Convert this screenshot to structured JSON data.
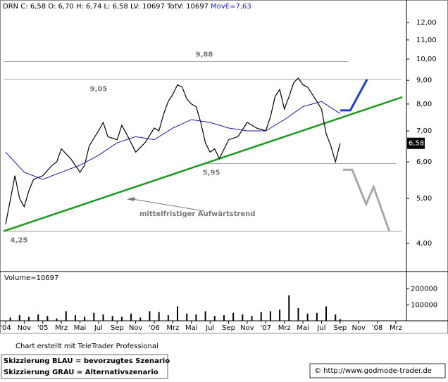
{
  "header": {
    "quote": "DRN C: 6,58 O: 6,70 H: 6,74 L: 6,58 LV: 10697 TotV: 10697",
    "ma": "MovE=7,63"
  },
  "chart_data": [
    {
      "type": "line",
      "log_y": true,
      "xlim": [
        -0.38,
        43.14
      ],
      "xticks": [
        {
          "value": 0,
          "label": "'04"
        },
        {
          "value": 2,
          "label": "Nov"
        },
        {
          "value": 4,
          "label": "'05"
        },
        {
          "value": 6,
          "label": "Mrz"
        },
        {
          "value": 8,
          "label": "Mai"
        },
        {
          "value": 10,
          "label": "Jul"
        },
        {
          "value": 12,
          "label": "Sep"
        },
        {
          "value": 14,
          "label": "Nov"
        },
        {
          "value": 16,
          "label": "'06"
        },
        {
          "value": 18,
          "label": "Mrz"
        },
        {
          "value": 20,
          "label": "Mai"
        },
        {
          "value": 22,
          "label": "Jul"
        },
        {
          "value": 24,
          "label": "Sep"
        },
        {
          "value": 26,
          "label": "Nov"
        },
        {
          "value": 28,
          "label": "'07"
        },
        {
          "value": 30,
          "label": "Mrz"
        },
        {
          "value": 32,
          "label": "Mai"
        },
        {
          "value": 34,
          "label": "Jul"
        },
        {
          "value": 36,
          "label": "Sep"
        },
        {
          "value": 38,
          "label": "Nov"
        },
        {
          "value": 40,
          "label": "'08"
        },
        {
          "value": 42,
          "label": "Mrz"
        }
      ],
      "ylim": [
        3.49,
        12.6
      ],
      "yticks": [
        {
          "value": 12,
          "label": "12,00"
        },
        {
          "value": 11,
          "label": "11,00"
        },
        {
          "value": 10,
          "label": "10,00"
        },
        {
          "value": 9,
          "label": "9,00"
        },
        {
          "value": 8,
          "label": "8,00"
        },
        {
          "value": 7,
          "label": "7,00"
        },
        {
          "value": 6,
          "label": "6,00"
        },
        {
          "value": 5,
          "label": "5,00"
        },
        {
          "value": 4,
          "label": "4,00"
        }
      ],
      "series": [
        {
          "name": "DRN",
          "color": "#000000",
          "x": [
            0,
            1,
            1.5,
            2,
            2.5,
            3,
            4,
            5,
            5.5,
            6,
            7,
            8,
            8.5,
            9,
            10,
            10.5,
            11,
            12,
            12.5,
            13,
            14,
            15,
            16,
            16.5,
            17,
            17.5,
            18,
            18.5,
            19,
            19.5,
            20,
            20.5,
            21,
            21.5,
            22,
            22.5,
            23,
            24,
            25,
            26,
            27,
            28,
            28.5,
            29,
            29.5,
            30,
            30.5,
            31,
            31.5,
            32,
            32.5,
            33,
            33.5,
            34,
            34.5,
            35,
            35.5,
            36
          ],
          "values": [
            4.4,
            5.6,
            5.0,
            4.8,
            5.2,
            5.5,
            5.6,
            5.9,
            6.0,
            6.4,
            6.1,
            5.7,
            5.9,
            6.5,
            7.0,
            7.3,
            6.8,
            6.7,
            7.2,
            6.9,
            6.3,
            6.6,
            7.1,
            7.0,
            7.6,
            8.1,
            8.4,
            8.8,
            8.7,
            8.2,
            8.0,
            7.9,
            7.3,
            6.6,
            6.3,
            6.4,
            6.1,
            6.7,
            6.8,
            7.3,
            7.1,
            7.0,
            7.5,
            8.3,
            8.6,
            7.8,
            8.3,
            8.9,
            9.1,
            8.8,
            8.7,
            8.4,
            8.1,
            7.8,
            6.9,
            6.5,
            6.0,
            6.58
          ]
        },
        {
          "name": "MovE",
          "color": "#1a1aa0",
          "x": [
            0,
            2,
            4,
            6,
            8,
            10,
            12,
            14,
            16,
            18,
            20,
            22,
            24,
            26,
            28,
            30,
            32,
            34,
            36
          ],
          "values": [
            6.3,
            5.7,
            5.5,
            5.7,
            5.9,
            6.2,
            6.6,
            6.8,
            6.7,
            7.1,
            7.4,
            7.3,
            7.1,
            7.0,
            7.0,
            7.4,
            7.9,
            8.1,
            7.63
          ]
        }
      ],
      "last_price": {
        "value": 6.58,
        "label": "6,58"
      },
      "levels": [
        {
          "value": 9.88,
          "label": "9,88",
          "x": [
            -0.23,
            36.9
          ]
        },
        {
          "value": 9.05,
          "label": "9,05",
          "x": [
            -0.23,
            42.6
          ]
        },
        {
          "value": 5.95,
          "label": "5,95",
          "x": [
            21.4,
            42.0
          ]
        },
        {
          "value": 4.25,
          "label": "4,25",
          "x": [
            -0.23,
            42.6
          ]
        }
      ],
      "trendline": {
        "label": "mittelfristiger Aufwärtstrend",
        "color": "#1a9a1a",
        "x": [
          -0.23,
          42.7
        ],
        "values": [
          4.25,
          8.28
        ]
      },
      "scenarios": [
        {
          "color": "#1f3fd0",
          "x": [
            36,
            37.1,
            38.9
          ],
          "values": [
            7.75,
            7.75,
            9.04
          ]
        },
        {
          "color": "#a8a8a8",
          "x": [
            36.3,
            37.3,
            38.8,
            39.6,
            41.3
          ],
          "values": [
            5.77,
            5.77,
            4.86,
            5.3,
            4.25
          ]
        }
      ]
    },
    {
      "type": "bar",
      "title": "Volume=10697",
      "color": "#000000",
      "ylim": [
        0,
        300000
      ],
      "yticks": [
        100000,
        200000
      ],
      "x": [
        0.5,
        1.5,
        2.5,
        3.5,
        4.5,
        5.5,
        6.5,
        7.5,
        8.5,
        9.5,
        10.5,
        11.5,
        12.5,
        13.5,
        14.5,
        15.5,
        16.5,
        17.5,
        18.5,
        19.5,
        20.5,
        21.5,
        22.5,
        23.5,
        24.5,
        25.5,
        26.5,
        27.5,
        28.5,
        29.5,
        30.5,
        31.5,
        32.5,
        33.5,
        34.5,
        35.5,
        36
      ],
      "values": [
        20000,
        35000,
        25000,
        40000,
        30000,
        15000,
        60000,
        35000,
        25000,
        50000,
        40000,
        30000,
        25000,
        45000,
        20000,
        60000,
        55000,
        35000,
        90000,
        45000,
        40000,
        60000,
        30000,
        35000,
        50000,
        40000,
        30000,
        55000,
        60000,
        70000,
        160000,
        80000,
        45000,
        50000,
        90000,
        40000,
        10697
      ]
    }
  ],
  "footer": {
    "credit": "Chart erstellt mit TeleTrader Professional",
    "blue": "Skizzierung BLAU = bevorzugtes Szenario",
    "grey": "Skizzierung GRAU = Alternativszenario",
    "site": "© http://www.godmode-trader.de"
  }
}
